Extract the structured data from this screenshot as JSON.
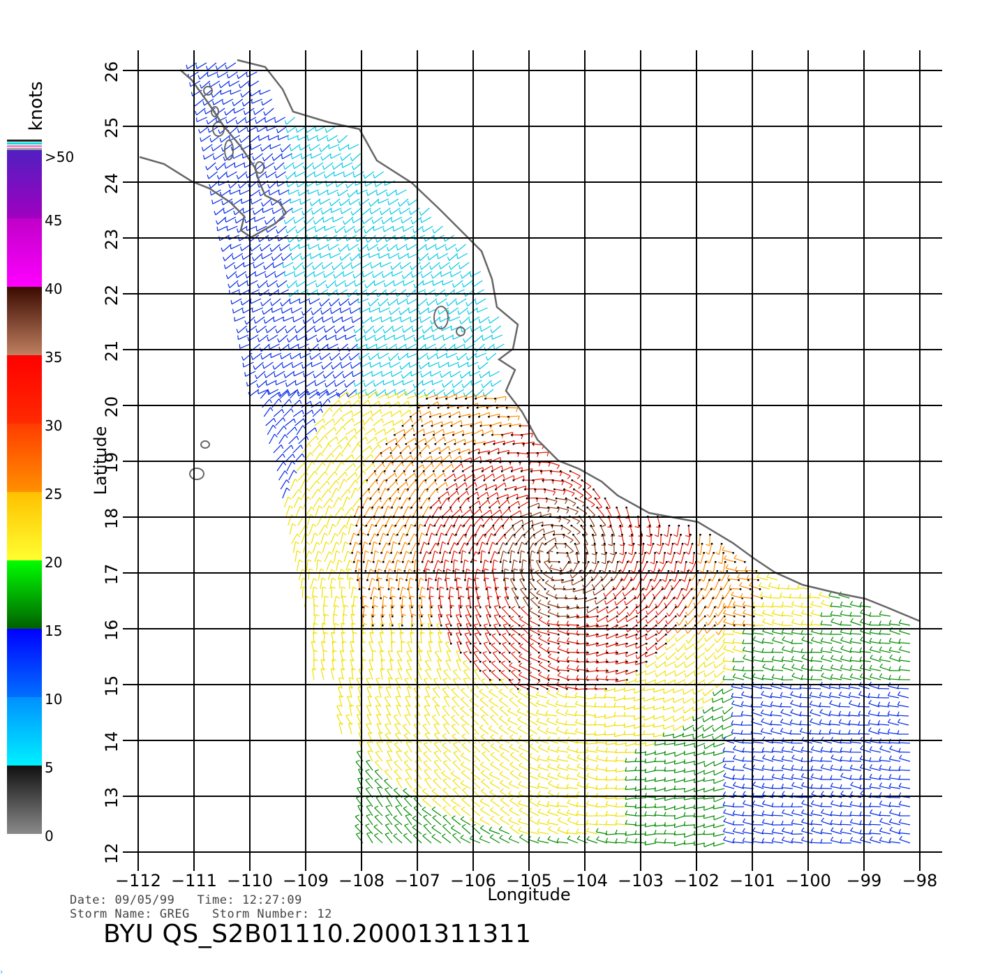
{
  "map": {
    "xlabel": "Longitude",
    "ylabel": "Latitude",
    "lon_ticks": [
      "-112",
      "-111",
      "-110",
      "-109",
      "-108",
      "-107",
      "-106",
      "-105",
      "-104",
      "-103",
      "-102",
      "-101",
      "-100",
      "-99",
      "-98"
    ],
    "lat_ticks": [
      "12",
      "13",
      "14",
      "15",
      "16",
      "17",
      "18",
      "19",
      "20",
      "21",
      "22",
      "23",
      "24",
      "25",
      "26"
    ],
    "lon_range": [
      -112,
      -98
    ],
    "lat_range": [
      12,
      26
    ],
    "grid": true
  },
  "colorbar": {
    "unit_label": "knots",
    "tick_labels": [
      "0",
      "5",
      "10",
      "15",
      "20",
      "25",
      "30",
      "35",
      "40",
      "45",
      ">50"
    ],
    "segments": [
      {
        "range": "0-5",
        "colors": [
          "#8a8a8a",
          "#101010"
        ]
      },
      {
        "range": "5-10",
        "colors": [
          "#00f0ff",
          "#0090ff"
        ]
      },
      {
        "range": "10-15",
        "colors": [
          "#0070ff",
          "#0000ff"
        ]
      },
      {
        "range": "15-20",
        "colors": [
          "#006000",
          "#00ff00"
        ]
      },
      {
        "range": "20-25",
        "colors": [
          "#ffff30",
          "#ffc000"
        ]
      },
      {
        "range": "25-30",
        "colors": [
          "#ff9000",
          "#ff3c00"
        ]
      },
      {
        "range": "30-35",
        "colors": [
          "#ff2a00",
          "#ff0000"
        ]
      },
      {
        "range": "35-40",
        "colors": [
          "#c08060",
          "#3a0a00"
        ]
      },
      {
        "range": "40-45",
        "colors": [
          "#ff00ff",
          "#c000c8"
        ]
      },
      {
        "range": "45-50+",
        "colors": [
          "#a000c0",
          "#5020c0"
        ]
      }
    ]
  },
  "header": {
    "date_label": "Date:",
    "date": "09/05/99",
    "time_label": "Time:",
    "time": "12:27:09",
    "storm_name_label": "Storm Name:",
    "storm_name": "GREG",
    "storm_number_label": "Storm Number:",
    "storm_number": "12"
  },
  "product_title": "BYU QS_S2B01110.20001311311",
  "wind_colors": {
    "calm": "#202020",
    "light": "#00c8e6",
    "moderate": "#0028e6",
    "fresh": "#008c00",
    "strong": "#f0e000",
    "gale": "#ff8c00",
    "storm": "#e61400",
    "severe": "#8c3c14",
    "extreme": "#c800c8"
  },
  "coastline_color": "#666666"
}
